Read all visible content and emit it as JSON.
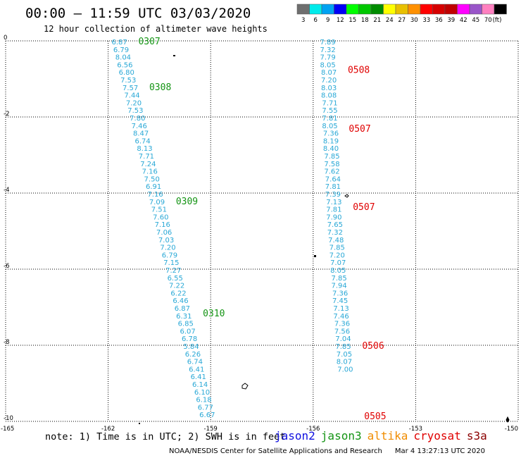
{
  "title": "00:00 – 11:59 UTC 03/03/2020",
  "subtitle": "12 hour collection of altimeter wave heights",
  "legend": {
    "unit": "(ft)",
    "levels": [
      {
        "label": "3",
        "color": "#6e6e6e"
      },
      {
        "label": "6",
        "color": "#00ebeb"
      },
      {
        "label": "9",
        "color": "#00a2f2"
      },
      {
        "label": "12",
        "color": "#0000f6"
      },
      {
        "label": "15",
        "color": "#00ff00"
      },
      {
        "label": "18",
        "color": "#00c800"
      },
      {
        "label": "21",
        "color": "#008c00"
      },
      {
        "label": "24",
        "color": "#ffff00"
      },
      {
        "label": "27",
        "color": "#e8c000"
      },
      {
        "label": "30",
        "color": "#ff9000"
      },
      {
        "label": "33",
        "color": "#ff0000"
      },
      {
        "label": "36",
        "color": "#d60000"
      },
      {
        "label": "39",
        "color": "#c00000"
      },
      {
        "label": "42",
        "color": "#ff00ff"
      },
      {
        "label": "45",
        "color": "#9955c9"
      },
      {
        "label": "70",
        "color": "#ff80c0"
      },
      {
        "label": "",
        "color": "#000000"
      }
    ]
  },
  "axes": {
    "x_ticks": [
      "-165",
      "-162",
      "-159",
      "-156",
      "-153",
      "-150"
    ],
    "y_ticks": [
      "0",
      "-2",
      "-4",
      "-6",
      "-8",
      "-10"
    ],
    "xlim": [
      -165,
      -150
    ],
    "ylim": [
      -10,
      0
    ]
  },
  "tracks": [
    {
      "satellite": "jason3",
      "color": "#149414",
      "passes": [
        {
          "label": "0307",
          "lat": 0.0
        },
        {
          "label": "0308",
          "lat": -1.2
        },
        {
          "label": "0309",
          "lat": -4.2
        },
        {
          "label": "0310",
          "lat": -7.15
        }
      ],
      "points": [
        {
          "lon": -161.9,
          "lat": 0.0,
          "v": "6.87"
        },
        {
          "lon": -161.85,
          "lat": -0.2,
          "v": "6.79"
        },
        {
          "lon": -161.79,
          "lat": -0.4,
          "v": "8.04"
        },
        {
          "lon": -161.74,
          "lat": -0.6,
          "v": "6.56"
        },
        {
          "lon": -161.69,
          "lat": -0.8,
          "v": "6.80"
        },
        {
          "lon": -161.64,
          "lat": -1.0,
          "v": "7.53"
        },
        {
          "lon": -161.58,
          "lat": -1.2,
          "v": "7.57"
        },
        {
          "lon": -161.53,
          "lat": -1.4,
          "v": "7.44"
        },
        {
          "lon": -161.48,
          "lat": -1.6,
          "v": "7.20"
        },
        {
          "lon": -161.43,
          "lat": -1.8,
          "v": "7.53"
        },
        {
          "lon": -161.37,
          "lat": -2.0,
          "v": "7.80"
        },
        {
          "lon": -161.32,
          "lat": -2.2,
          "v": "7.46"
        },
        {
          "lon": -161.27,
          "lat": -2.4,
          "v": "8.47"
        },
        {
          "lon": -161.22,
          "lat": -2.6,
          "v": "6.74"
        },
        {
          "lon": -161.16,
          "lat": -2.8,
          "v": "8.13"
        },
        {
          "lon": -161.11,
          "lat": -3.0,
          "v": "7.71"
        },
        {
          "lon": -161.06,
          "lat": -3.2,
          "v": "7.24"
        },
        {
          "lon": -161.01,
          "lat": -3.4,
          "v": "7.16"
        },
        {
          "lon": -160.95,
          "lat": -3.6,
          "v": "7.50"
        },
        {
          "lon": -160.9,
          "lat": -3.8,
          "v": "6.91"
        },
        {
          "lon": -160.85,
          "lat": -4.0,
          "v": "7.16"
        },
        {
          "lon": -160.8,
          "lat": -4.2,
          "v": "7.09"
        },
        {
          "lon": -160.74,
          "lat": -4.4,
          "v": "7.51"
        },
        {
          "lon": -160.69,
          "lat": -4.6,
          "v": "7.60"
        },
        {
          "lon": -160.64,
          "lat": -4.8,
          "v": "7.16"
        },
        {
          "lon": -160.59,
          "lat": -5.0,
          "v": "7.06"
        },
        {
          "lon": -160.53,
          "lat": -5.2,
          "v": "7.03"
        },
        {
          "lon": -160.48,
          "lat": -5.4,
          "v": "7.20"
        },
        {
          "lon": -160.43,
          "lat": -5.6,
          "v": "6.79"
        },
        {
          "lon": -160.38,
          "lat": -5.8,
          "v": "7.15"
        },
        {
          "lon": -160.32,
          "lat": -6.0,
          "v": "7.27"
        },
        {
          "lon": -160.27,
          "lat": -6.2,
          "v": "6.55"
        },
        {
          "lon": -160.22,
          "lat": -6.4,
          "v": "7.22"
        },
        {
          "lon": -160.17,
          "lat": -6.6,
          "v": "6.22"
        },
        {
          "lon": -160.11,
          "lat": -6.8,
          "v": "6.46"
        },
        {
          "lon": -160.06,
          "lat": -7.0,
          "v": "6.87"
        },
        {
          "lon": -160.01,
          "lat": -7.2,
          "v": "6.31"
        },
        {
          "lon": -159.96,
          "lat": -7.4,
          "v": "6.85"
        },
        {
          "lon": -159.9,
          "lat": -7.6,
          "v": "6.07"
        },
        {
          "lon": -159.85,
          "lat": -7.8,
          "v": "6.78"
        },
        {
          "lon": -159.8,
          "lat": -8.0,
          "v": "5.84"
        },
        {
          "lon": -159.75,
          "lat": -8.2,
          "v": "6.26"
        },
        {
          "lon": -159.69,
          "lat": -8.4,
          "v": "6.74"
        },
        {
          "lon": -159.64,
          "lat": -8.6,
          "v": "6.41"
        },
        {
          "lon": -159.59,
          "lat": -8.8,
          "v": "6.41"
        },
        {
          "lon": -159.54,
          "lat": -9.0,
          "v": "6.14"
        },
        {
          "lon": -159.48,
          "lat": -9.2,
          "v": "6.10"
        },
        {
          "lon": -159.43,
          "lat": -9.4,
          "v": "6.18"
        },
        {
          "lon": -159.38,
          "lat": -9.6,
          "v": "6.77"
        },
        {
          "lon": -159.33,
          "lat": -9.8,
          "v": "6.67"
        }
      ]
    },
    {
      "satellite": "cryosat",
      "color": "#e00000",
      "passes": [
        {
          "label": "0508",
          "lat": -0.75
        },
        {
          "label": "0507",
          "lat": -2.3
        },
        {
          "label": "0507",
          "lat": -4.35
        },
        {
          "label": "0506",
          "lat": -8.0
        },
        {
          "label": "0505",
          "lat": -9.85
        }
      ],
      "points": [
        {
          "lon": -155.8,
          "lat": 0.0,
          "v": "7.89"
        },
        {
          "lon": -155.8,
          "lat": -0.2,
          "v": "7.32"
        },
        {
          "lon": -155.8,
          "lat": -0.4,
          "v": "7.79"
        },
        {
          "lon": -155.8,
          "lat": -0.6,
          "v": "8.05"
        },
        {
          "lon": -155.77,
          "lat": -0.8,
          "v": "8.07"
        },
        {
          "lon": -155.77,
          "lat": -1.0,
          "v": "7.20"
        },
        {
          "lon": -155.77,
          "lat": -1.2,
          "v": "8.03"
        },
        {
          "lon": -155.77,
          "lat": -1.4,
          "v": "8.08"
        },
        {
          "lon": -155.74,
          "lat": -1.6,
          "v": "7.71"
        },
        {
          "lon": -155.74,
          "lat": -1.8,
          "v": "7.55"
        },
        {
          "lon": -155.74,
          "lat": -2.0,
          "v": "7.81"
        },
        {
          "lon": -155.74,
          "lat": -2.2,
          "v": "8.05"
        },
        {
          "lon": -155.71,
          "lat": -2.4,
          "v": "7.36"
        },
        {
          "lon": -155.71,
          "lat": -2.6,
          "v": "8.19"
        },
        {
          "lon": -155.71,
          "lat": -2.8,
          "v": "8.40"
        },
        {
          "lon": -155.68,
          "lat": -3.0,
          "v": "7.85"
        },
        {
          "lon": -155.68,
          "lat": -3.2,
          "v": "7.58"
        },
        {
          "lon": -155.68,
          "lat": -3.4,
          "v": "7.62"
        },
        {
          "lon": -155.65,
          "lat": -3.6,
          "v": "7.64"
        },
        {
          "lon": -155.65,
          "lat": -3.8,
          "v": "7.81"
        },
        {
          "lon": -155.65,
          "lat": -4.0,
          "v": "7.39"
        },
        {
          "lon": -155.62,
          "lat": -4.2,
          "v": "7.13"
        },
        {
          "lon": -155.62,
          "lat": -4.4,
          "v": "7.81"
        },
        {
          "lon": -155.62,
          "lat": -4.6,
          "v": "7.90"
        },
        {
          "lon": -155.59,
          "lat": -4.8,
          "v": "7.65"
        },
        {
          "lon": -155.59,
          "lat": -5.0,
          "v": "7.32"
        },
        {
          "lon": -155.56,
          "lat": -5.2,
          "v": "7.48"
        },
        {
          "lon": -155.53,
          "lat": -5.4,
          "v": "7.85"
        },
        {
          "lon": -155.53,
          "lat": -5.6,
          "v": "7.20"
        },
        {
          "lon": -155.5,
          "lat": -5.8,
          "v": "7.07"
        },
        {
          "lon": -155.5,
          "lat": -6.0,
          "v": "8.05"
        },
        {
          "lon": -155.47,
          "lat": -6.2,
          "v": "7.85"
        },
        {
          "lon": -155.47,
          "lat": -6.4,
          "v": "7.94"
        },
        {
          "lon": -155.44,
          "lat": -6.6,
          "v": "7.36"
        },
        {
          "lon": -155.44,
          "lat": -6.8,
          "v": "7.45"
        },
        {
          "lon": -155.41,
          "lat": -7.0,
          "v": "7.13"
        },
        {
          "lon": -155.41,
          "lat": -7.2,
          "v": "7.46"
        },
        {
          "lon": -155.38,
          "lat": -7.4,
          "v": "7.36"
        },
        {
          "lon": -155.38,
          "lat": -7.6,
          "v": "7.56"
        },
        {
          "lon": -155.35,
          "lat": -7.8,
          "v": "7.04"
        },
        {
          "lon": -155.35,
          "lat": -8.0,
          "v": "7.85"
        },
        {
          "lon": -155.32,
          "lat": -8.2,
          "v": "7.05"
        },
        {
          "lon": -155.32,
          "lat": -8.4,
          "v": "8.07"
        },
        {
          "lon": -155.29,
          "lat": -8.6,
          "v": "7.00"
        }
      ]
    }
  ],
  "note": "note: 1) Time is in UTC; 2) SWH is in feet",
  "satellites": [
    {
      "name": "jason2",
      "color": "#1010e0"
    },
    {
      "name": "jason3",
      "color": "#149414"
    },
    {
      "name": "altika",
      "color": "#f08c00"
    },
    {
      "name": "cryosat",
      "color": "#e00000"
    },
    {
      "name": "s3a",
      "color": "#8b0000"
    }
  ],
  "credits": "NOAA/NESDIS Center for Satellite Applications and Research",
  "timestamp": "Mar  4 13:27:13 UTC 2020"
}
